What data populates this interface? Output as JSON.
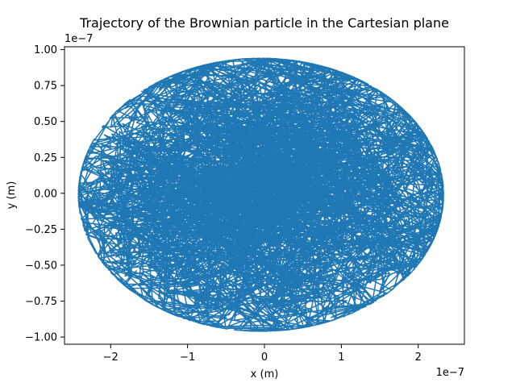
{
  "chart_data": {
    "type": "line",
    "title": "Trajectory of the Brownian particle in the Cartesian plane",
    "xlabel": "x (m)",
    "ylabel": "y (m)",
    "x_offset_text": "1e−7",
    "y_offset_text": "1e−7",
    "xlim": [
      -2.6e-07,
      2.6e-07
    ],
    "ylim": [
      -1.05e-07,
      1.02e-07
    ],
    "x_ticks": [
      -2e-07,
      -1e-07,
      0,
      1e-07,
      2e-07
    ],
    "x_tick_labels": [
      "−2",
      "−1",
      "0",
      "1",
      "2"
    ],
    "y_ticks": [
      -1e-07,
      -7.5e-08,
      -5e-08,
      -2.5e-08,
      0,
      2.5e-08,
      5e-08,
      7.5e-08,
      1e-07
    ],
    "y_tick_labels": [
      "−1.00",
      "−0.75",
      "−0.50",
      "−0.25",
      "0.00",
      "0.25",
      "0.50",
      "0.75",
      "1.00"
    ],
    "grid": false,
    "series": [
      {
        "color": "#1f77b4",
        "extent_x": [
          -2.42e-07,
          2.33e-07
        ],
        "extent_y": [
          -9.6e-08,
          9.4e-08
        ],
        "note_points": "dense random-walk trajectory filling an ellipse centred at the origin",
        "x": [
          0,
          -3e-08,
          -8e-08,
          -1.4e-07,
          -1.9e-07,
          -2.3e-07,
          -2.42e-07,
          -2.1e-07,
          -1.5e-07,
          -8e-08,
          -2e-08,
          4e-08,
          1e-07,
          1.6e-07,
          2e-07,
          2.33e-07,
          2.25e-07,
          1.8e-07,
          1.2e-07,
          6e-08,
          0.0,
          -5e-08,
          -1e-07,
          -1.3e-07,
          -9e-08,
          -4e-08,
          2e-08,
          8e-08,
          1.05e-07,
          7e-08,
          1e-08,
          -4.5e-08,
          -1e-08,
          4e-08
        ],
        "y": [
          0,
          3e-08,
          5.5e-08,
          6e-08,
          4.5e-08,
          1.5e-08,
          -5e-09,
          -4e-08,
          -6.5e-08,
          -8.5e-08,
          -9e-08,
          -8.5e-08,
          -7e-08,
          -5e-08,
          -3e-08,
          -5e-09,
          2e-08,
          4.5e-08,
          7e-08,
          8.5e-08,
          9.4e-08,
          8e-08,
          5.5e-08,
          2e-08,
          -2e-08,
          -5e-08,
          -5.5e-08,
          -3.5e-08,
          0.0,
          3e-08,
          4.5e-08,
          2e-08,
          -1.5e-08,
          5e-09
        ]
      }
    ]
  }
}
